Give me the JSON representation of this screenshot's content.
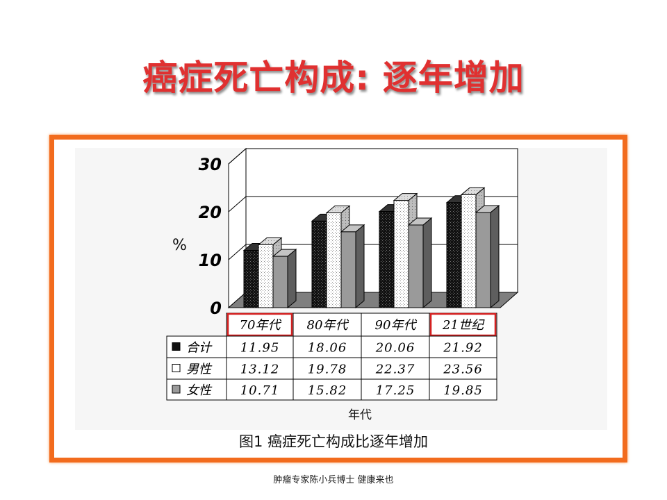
{
  "slide": {
    "title": "癌症死亡构成: 逐年增加",
    "caption": "图1 癌症死亡构成比逐年增加",
    "footer": "肿瘤专家陈小兵博士  健康来也"
  },
  "colors": {
    "title": "#e03030",
    "frame": "#f26b1d",
    "highlight": "#d42020"
  },
  "chart_data": {
    "type": "bar",
    "categories": [
      "70年代",
      "80年代",
      "90年代",
      "21世纪"
    ],
    "highlighted_categories": [
      "70年代",
      "21世纪"
    ],
    "series": [
      {
        "name": "合计",
        "values": [
          11.95,
          18.06,
          20.06,
          21.92
        ],
        "pattern": "black dotted"
      },
      {
        "name": "男性",
        "values": [
          13.12,
          19.78,
          22.37,
          23.56
        ],
        "pattern": "white dotted"
      },
      {
        "name": "女性",
        "values": [
          10.71,
          15.82,
          17.25,
          19.85
        ],
        "pattern": "gray"
      }
    ],
    "table_values": [
      [
        "11.95",
        "18.06",
        "20.06",
        "21.92"
      ],
      [
        "13.12",
        "19.78",
        "22.37",
        "23.56"
      ],
      [
        "10.71",
        "15.82",
        "17.25",
        "19.85"
      ]
    ],
    "y_ticks": [
      "0",
      "10",
      "20",
      "30"
    ],
    "ylabel": "%",
    "xlabel": "年代",
    "ylim": [
      0,
      30
    ],
    "grid": true,
    "legend": "data-table",
    "style": "3d-bar"
  }
}
